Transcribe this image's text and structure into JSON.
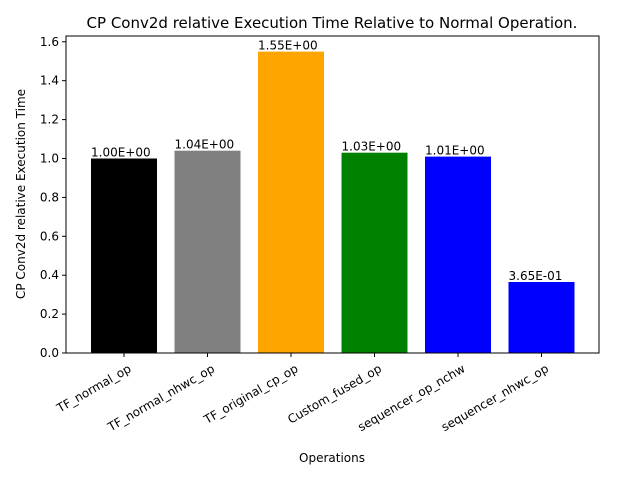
{
  "chart_data": {
    "type": "bar",
    "title": "CP Conv2d relative Execution Time Relative to Normal Operation.",
    "xlabel": "Operations",
    "ylabel": "CP Conv2d relative Execution Time",
    "categories": [
      "TF_normal_op",
      "TF_normal_nhwc_op",
      "TF_original_cp_op",
      "Custom_fused_op",
      "sequencer_op_nchw",
      "sequencer_nhwc_op"
    ],
    "values": [
      1.0,
      1.04,
      1.55,
      1.03,
      1.01,
      0.365
    ],
    "value_labels": [
      "1.00E+00",
      "1.04E+00",
      "1.55E+00",
      "1.03E+00",
      "1.01E+00",
      "3.65E-01"
    ],
    "colors": [
      "#000000",
      "#808080",
      "#ffa500",
      "#008000",
      "#0000ff",
      "#0000ff"
    ],
    "ylim": [
      0,
      1.63
    ],
    "yticks": [
      0.0,
      0.2,
      0.4,
      0.6,
      0.8,
      1.0,
      1.2,
      1.4,
      1.6
    ],
    "ytick_labels": [
      "0.0",
      "0.2",
      "0.4",
      "0.6",
      "0.8",
      "1.0",
      "1.2",
      "1.4",
      "1.6"
    ],
    "grid": false,
    "legend": false
  }
}
